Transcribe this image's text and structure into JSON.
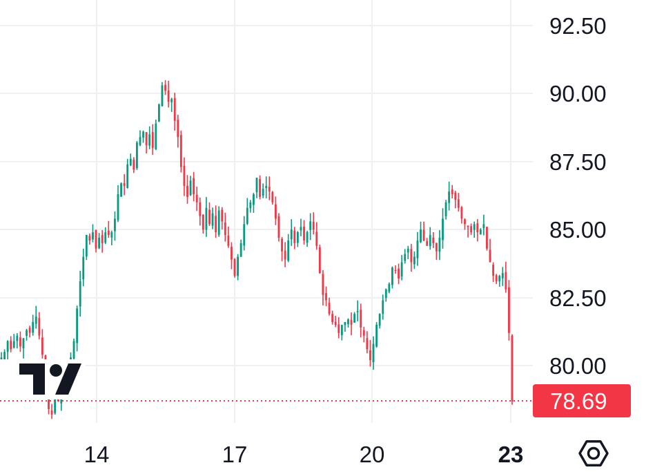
{
  "chart_data": {
    "type": "candlestick",
    "colors": {
      "up": "#089981",
      "down": "#f23645",
      "grid": "#f0f0f3",
      "text": "#131722",
      "last_price_bg": "#f23645"
    },
    "y_ticks": [
      "92.50",
      "90.00",
      "87.50",
      "85.00",
      "82.50",
      "80.00"
    ],
    "x_ticks": [
      {
        "label": "14",
        "bold": false
      },
      {
        "label": "17",
        "bold": false
      },
      {
        "label": "20",
        "bold": false
      },
      {
        "label": "23",
        "bold": true
      }
    ],
    "last_price": "78.69",
    "ylim": [
      77.8,
      93.2
    ],
    "series_close": [
      80.3,
      80.5,
      80.9,
      80.6,
      80.9,
      81.1,
      80.7,
      81.0,
      81.3,
      81.2,
      81.6,
      81.8,
      81.1,
      80.4,
      79.3,
      78.4,
      78.2,
      79.0,
      78.7,
      79.6,
      79.8,
      79.5,
      80.3,
      80.9,
      82.1,
      83.1,
      84.0,
      84.8,
      84.6,
      84.9,
      84.3,
      84.7,
      84.5,
      84.9,
      84.8,
      84.9,
      85.4,
      86.3,
      86.7,
      86.6,
      87.4,
      87.6,
      87.2,
      88.2,
      88.4,
      88.6,
      88.1,
      88.5,
      88.0,
      88.9,
      89.6,
      90.3,
      90.1,
      89.7,
      89.8,
      89.0,
      88.4,
      87.3,
      86.6,
      86.2,
      86.8,
      86.3,
      86.0,
      85.5,
      85.0,
      85.8,
      85.2,
      85.6,
      84.9,
      85.7,
      85.3,
      84.8,
      84.4,
      83.9,
      83.3,
      84.0,
      84.5,
      85.2,
      85.8,
      86.0,
      86.3,
      86.9,
      86.2,
      86.5,
      86.6,
      86.4,
      86.0,
      85.4,
      84.7,
      84.2,
      83.9,
      84.6,
      85.0,
      84.5,
      84.9,
      85.1,
      84.6,
      84.9,
      85.3,
      85.0,
      84.4,
      83.4,
      82.6,
      82.4,
      81.9,
      81.6,
      81.5,
      81.2,
      81.5,
      81.6,
      81.7,
      81.5,
      81.9,
      82.0,
      81.4,
      81.1,
      80.6,
      80.2,
      80.8,
      81.5,
      81.9,
      82.4,
      82.8,
      83.0,
      83.6,
      83.5,
      83.2,
      83.8,
      84.1,
      84.3,
      83.8,
      84.0,
      84.6,
      85.0,
      84.6,
      84.4,
      84.8,
      84.5,
      84.2,
      84.7,
      85.4,
      86.0,
      86.4,
      86.3,
      86.1,
      85.8,
      85.4,
      85.2,
      85.1,
      84.9,
      85.2,
      84.9,
      85.0,
      85.2,
      84.3,
      83.8,
      83.3,
      83.1,
      83.3,
      83.4,
      82.8,
      81.2,
      78.69
    ]
  }
}
